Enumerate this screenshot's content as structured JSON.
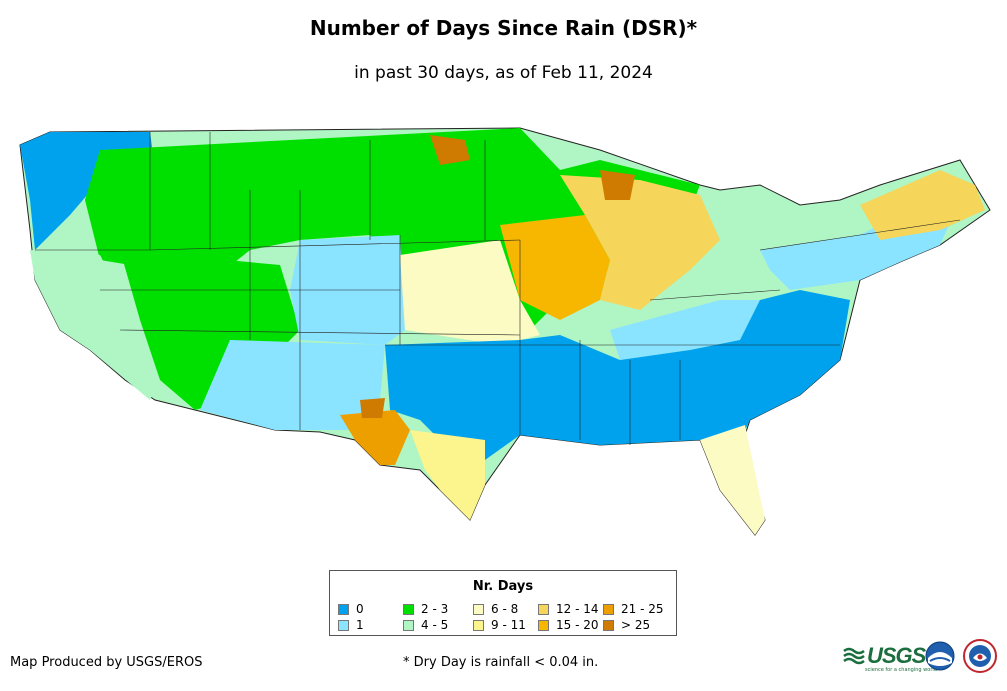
{
  "title": "Number of Days Since Rain (DSR)*",
  "subtitle": "in past 30 days, as of Feb 11, 2024",
  "legend": {
    "title": "Nr. Days",
    "items": [
      {
        "label": "0",
        "color": "#00a2ed"
      },
      {
        "label": "1",
        "color": "#8ae3ff"
      },
      {
        "label": "2 - 3",
        "color": "#00e000"
      },
      {
        "label": "4 - 5",
        "color": "#b0f5c4"
      },
      {
        "label": "6 - 8",
        "color": "#fbfbc3"
      },
      {
        "label": "9 - 11",
        "color": "#fcf48c"
      },
      {
        "label": "12 - 14",
        "color": "#f5d65b"
      },
      {
        "label": "15 - 20",
        "color": "#f7b700"
      },
      {
        "label": "21 - 25",
        "color": "#ee9f00"
      },
      {
        "label": "> 25",
        "color": "#cf7a00"
      }
    ]
  },
  "footer": {
    "credit": "Map Produced by USGS/EROS",
    "note": "* Dry Day is rainfall < 0.04 in."
  },
  "logos": {
    "usgs": "USGS",
    "usgs_tagline": "science for a changing world",
    "noaa": "noaa-logo",
    "nws": "nws-logo"
  }
}
